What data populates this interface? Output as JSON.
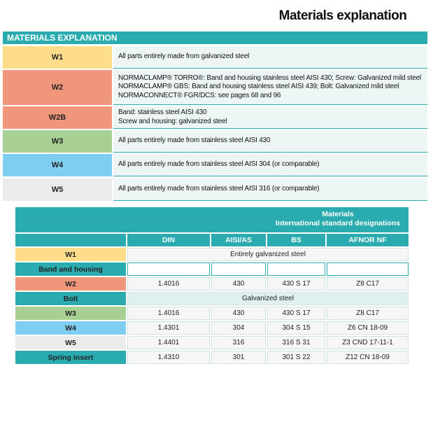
{
  "title": "Materials explanation",
  "explanation": {
    "header": "MATERIALS EXPLANATION",
    "rows": [
      {
        "code": "W1",
        "lines": [
          "All parts entirely made from galvanized steel"
        ]
      },
      {
        "code": "W2",
        "lines": [
          "NORMACLAMP® TORRO®: Band and housing stainless steel AISI 430; Screw: Galvanized mild steel",
          "NORMACLAMP® GBS: Band and housing stainless steel AISI 439; Bolt: Galvanized mild steel",
          "NORMACONNECT® FGR/DCS: see pages 68 and 96"
        ]
      },
      {
        "code": "W2B",
        "lines": [
          "Band: stainless steel AISI 430",
          "Screw and housing: galvanized steel"
        ]
      },
      {
        "code": "W3",
        "lines": [
          "All parts entirely made from stainless steel AISI 430"
        ]
      },
      {
        "code": "W4",
        "lines": [
          "All parts entirely made from stainless steel AISI 304 (or comparable)"
        ]
      },
      {
        "code": "W5",
        "lines": [
          "All parts entirely made from stainless steel AISI 316 (or comparable)"
        ]
      }
    ]
  },
  "standards": {
    "header": [
      "Materials",
      "International standard designations"
    ],
    "columns": [
      "DIN",
      "AISI/AS",
      "BS",
      "AFNOR NF"
    ],
    "rows": [
      {
        "label": "W1",
        "merged": "Entirely galvanized steel"
      },
      {
        "label": "Band and housing"
      },
      {
        "label": "W2",
        "cells": [
          "1.4016",
          "430",
          "430 S 17",
          "Z8 C17"
        ]
      },
      {
        "label": "Bolt",
        "merged": "Galvanized steel"
      },
      {
        "label": "W3",
        "cells": [
          "1.4016",
          "430",
          "430 S 17",
          "Z8 C17"
        ]
      },
      {
        "label": "W4",
        "cells": [
          "1.4301",
          "304",
          "304 S 15",
          "Z6 CN 18-09"
        ]
      },
      {
        "label": "W5",
        "cells": [
          "1.4401",
          "316",
          "316 S 31",
          "Z3 CND 17-11-1"
        ]
      },
      {
        "label": "Spring insert",
        "cells": [
          "1.4310",
          "301",
          "301 S 22",
          "Z12 CN 18-09"
        ]
      }
    ]
  }
}
